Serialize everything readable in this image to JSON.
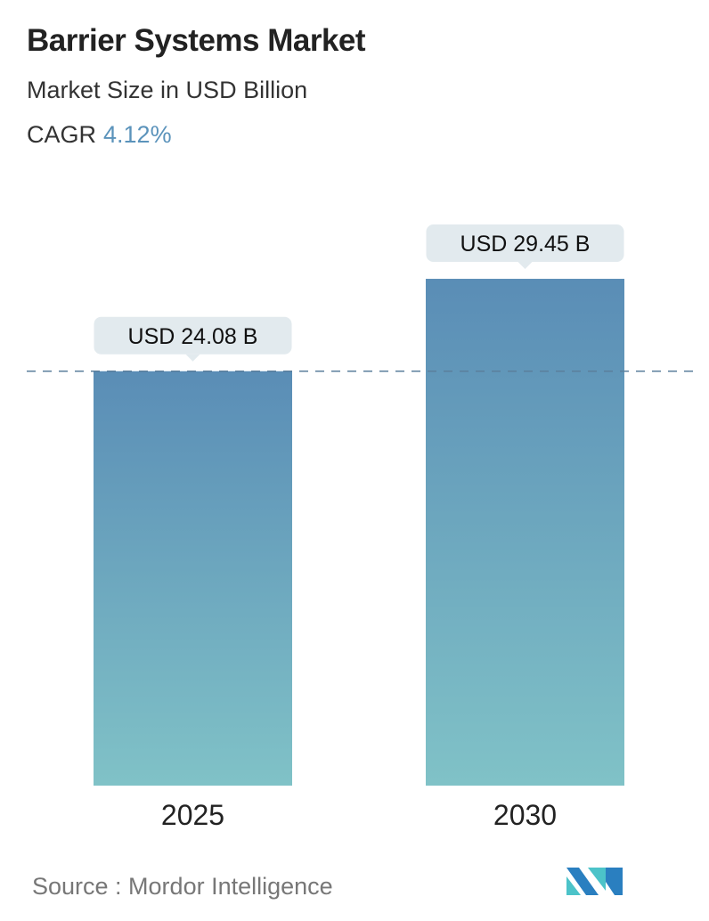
{
  "header": {
    "title": "Barrier Systems Market",
    "subtitle": "Market Size in USD Billion",
    "cagr_label": "CAGR",
    "cagr_value": "4.12%"
  },
  "chart_data": {
    "type": "bar",
    "categories": [
      "2025",
      "2030"
    ],
    "values": [
      24.08,
      29.45
    ],
    "data_labels": [
      "USD 24.08 B",
      "USD 29.45 B"
    ],
    "unit": "USD Billion",
    "reference_line": 24.08,
    "colors": {
      "bar_top": "#5a8db6",
      "bar_bottom": "#80c2c7",
      "label_bg": "#e2eaee",
      "dashed_line": "#5b7f9c",
      "cagr": "#5b93bb"
    }
  },
  "footer": {
    "source_text": "Source :  Mordor Intelligence",
    "logo": "Mordor Intelligence"
  }
}
